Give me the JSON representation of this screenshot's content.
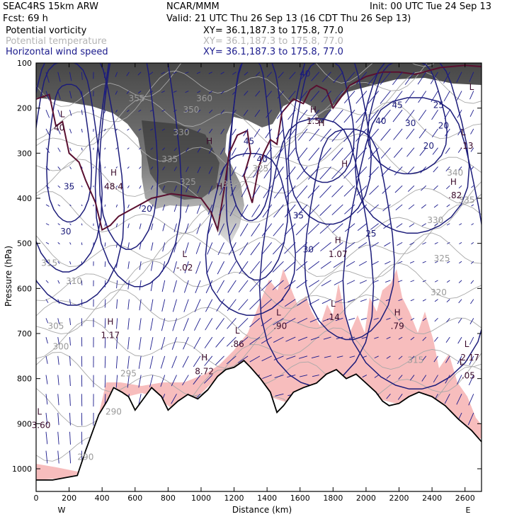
{
  "header": {
    "model": "SEAC4RS 15km ARW",
    "forecast": "Fcst:    69 h",
    "center": "NCAR/MMM",
    "valid": "Valid: 21 UTC Thu 26 Sep 13 (16 CDT Thu 26 Sep 13)",
    "init": "Init: 00 UTC Tue 24 Sep 13",
    "fields": [
      {
        "name": "Potential vorticity",
        "xy": "XY=  36.1,187.3 to 175.8, 77.0",
        "color": "#000000"
      },
      {
        "name": "Potential temperature",
        "xy": "XY=  36.1,187.3 to 175.8, 77.0",
        "color": "#b4b4b4"
      },
      {
        "name": "Horizontal wind speed",
        "xy": "XY=  36.1,187.3 to 175.8, 77.0",
        "color": "#1a1a8c"
      }
    ]
  },
  "colors": {
    "wind_contour": "#1c1c7a",
    "theta_contour": "#a8a8a8",
    "pv_contour": "#5a1030",
    "pv_shading": "#3c3c3c",
    "rh_shading": "#f6b6b6",
    "terrain": "#000000",
    "vector": "#1a1a8c"
  },
  "chart_data": {
    "type": "cross-section",
    "xlabel": "Distance (km)",
    "ylabel": "Pressure (hPa)",
    "xlim": [
      0,
      2700
    ],
    "ylim": [
      1050,
      100
    ],
    "x_ticks": [
      "0",
      "200",
      "400",
      "600",
      "800",
      "1000",
      "1200",
      "1400",
      "1600",
      "1800",
      "2000",
      "2200",
      "2400",
      "2600"
    ],
    "x_tick_values": [
      0,
      200,
      400,
      600,
      800,
      1000,
      1200,
      1400,
      1600,
      1800,
      2000,
      2200,
      2400,
      2600
    ],
    "y_ticks": [
      "100",
      "200",
      "300",
      "400",
      "500",
      "600",
      "700",
      "800",
      "900",
      "1000"
    ],
    "y_tick_values": [
      100,
      200,
      300,
      400,
      500,
      600,
      700,
      800,
      900,
      1000
    ],
    "endpoints": {
      "left": "W",
      "right": "E"
    },
    "terrain_profile": [
      [
        0,
        1025
      ],
      [
        100,
        1025
      ],
      [
        250,
        1015
      ],
      [
        300,
        960
      ],
      [
        380,
        880
      ],
      [
        430,
        850
      ],
      [
        470,
        820
      ],
      [
        520,
        830
      ],
      [
        560,
        840
      ],
      [
        600,
        870
      ],
      [
        640,
        850
      ],
      [
        700,
        820
      ],
      [
        760,
        840
      ],
      [
        800,
        870
      ],
      [
        860,
        850
      ],
      [
        920,
        835
      ],
      [
        980,
        845
      ],
      [
        1040,
        825
      ],
      [
        1100,
        795
      ],
      [
        1150,
        780
      ],
      [
        1200,
        775
      ],
      [
        1260,
        760
      ],
      [
        1300,
        775
      ],
      [
        1360,
        800
      ],
      [
        1420,
        830
      ],
      [
        1460,
        875
      ],
      [
        1500,
        860
      ],
      [
        1560,
        830
      ],
      [
        1620,
        820
      ],
      [
        1700,
        810
      ],
      [
        1760,
        790
      ],
      [
        1820,
        780
      ],
      [
        1880,
        800
      ],
      [
        1940,
        790
      ],
      [
        2000,
        810
      ],
      [
        2060,
        830
      ],
      [
        2100,
        850
      ],
      [
        2140,
        860
      ],
      [
        2200,
        855
      ],
      [
        2260,
        840
      ],
      [
        2320,
        830
      ],
      [
        2400,
        840
      ],
      [
        2480,
        860
      ],
      [
        2560,
        890
      ],
      [
        2640,
        915
      ],
      [
        2700,
        940
      ]
    ],
    "pressure_labels": [
      {
        "text": "L",
        "x": 2640,
        "p": 160
      },
      {
        "text": "H",
        "x": 1730,
        "p": 240
      },
      {
        "text": "H",
        "x": 1110,
        "p": 380
      },
      {
        "text": "L",
        "x": 900,
        "p": 530
      },
      {
        "text": "-.02",
        "x": 900,
        "p": 560
      },
      {
        "text": "H",
        "x": 1830,
        "p": 500
      },
      {
        "text": "1.07",
        "x": 1830,
        "p": 530
      },
      {
        "text": "L",
        "x": 1800,
        "p": 640
      },
      {
        "text": ".14",
        "x": 1800,
        "p": 670
      },
      {
        "text": "H",
        "x": 2190,
        "p": 660
      },
      {
        "text": ".79",
        "x": 2190,
        "p": 690
      },
      {
        "text": "L",
        "x": 1220,
        "p": 700
      },
      {
        "text": ".86",
        "x": 1220,
        "p": 730
      },
      {
        "text": "L",
        "x": 1470,
        "p": 660
      },
      {
        "text": ".90",
        "x": 1480,
        "p": 690
      },
      {
        "text": "H",
        "x": 450,
        "p": 680
      },
      {
        "text": "1.17",
        "x": 450,
        "p": 710
      },
      {
        "text": "H",
        "x": 1020,
        "p": 760
      },
      {
        "text": "8.72",
        "x": 1020,
        "p": 790
      },
      {
        "text": "L",
        "x": 20,
        "p": 880
      },
      {
        "text": "3.60",
        "x": 30,
        "p": 910
      },
      {
        "text": "L",
        "x": 2610,
        "p": 730
      },
      {
        "text": "2.17",
        "x": 2630,
        "p": 760
      },
      {
        "text": "L",
        "x": 2580,
        "p": 770
      },
      {
        "text": ".05",
        "x": 2620,
        "p": 800
      },
      {
        "text": "H",
        "x": 2530,
        "p": 370
      },
      {
        "text": ".82",
        "x": 2540,
        "p": 400
      },
      {
        "text": "L",
        "x": 2590,
        "p": 260
      },
      {
        "text": ".13",
        "x": 2610,
        "p": 290
      },
      {
        "text": "H",
        "x": 470,
        "p": 350
      },
      {
        "text": "48.4",
        "x": 470,
        "p": 380
      },
      {
        "text": "L",
        "x": 160,
        "p": 220
      },
      {
        "text": "40",
        "x": 140,
        "p": 250
      },
      {
        "text": "H",
        "x": 1680,
        "p": 210
      },
      {
        "text": "1.5",
        "x": 1680,
        "p": 235
      },
      {
        "text": "H",
        "x": 1870,
        "p": 330
      },
      {
        "text": "H",
        "x": 1050,
        "p": 280
      }
    ],
    "wind_speed_labels": [
      {
        "text": "35",
        "x": 200,
        "p": 380
      },
      {
        "text": "30",
        "x": 180,
        "p": 480
      },
      {
        "text": "20",
        "x": 670,
        "p": 430
      },
      {
        "text": "45",
        "x": 1290,
        "p": 280
      },
      {
        "text": "40",
        "x": 1370,
        "p": 320
      },
      {
        "text": "35",
        "x": 1590,
        "p": 445
      },
      {
        "text": "30",
        "x": 1650,
        "p": 520
      },
      {
        "text": "25",
        "x": 2030,
        "p": 485
      },
      {
        "text": "20",
        "x": 2380,
        "p": 290
      },
      {
        "text": "25",
        "x": 2440,
        "p": 200
      },
      {
        "text": "30",
        "x": 2270,
        "p": 240
      },
      {
        "text": "20",
        "x": 2470,
        "p": 245
      },
      {
        "text": "40",
        "x": 2090,
        "p": 235
      },
      {
        "text": "45",
        "x": 2190,
        "p": 200
      },
      {
        "text": "40",
        "x": 1630,
        "p": 130
      }
    ],
    "theta_labels": [
      {
        "text": "335",
        "x": 2610,
        "p": 410
      },
      {
        "text": "330",
        "x": 2420,
        "p": 455
      },
      {
        "text": "325",
        "x": 2460,
        "p": 540
      },
      {
        "text": "320",
        "x": 2440,
        "p": 615
      },
      {
        "text": "315",
        "x": 2300,
        "p": 765
      },
      {
        "text": "305",
        "x": 120,
        "p": 690
      },
      {
        "text": "300",
        "x": 150,
        "p": 735
      },
      {
        "text": "295",
        "x": 560,
        "p": 795
      },
      {
        "text": "290",
        "x": 470,
        "p": 880
      },
      {
        "text": "290",
        "x": 300,
        "p": 980
      },
      {
        "text": "310",
        "x": 230,
        "p": 590
      },
      {
        "text": "315",
        "x": 80,
        "p": 550
      },
      {
        "text": "340",
        "x": 2540,
        "p": 350
      },
      {
        "text": "335",
        "x": 810,
        "p": 320
      },
      {
        "text": "325",
        "x": 920,
        "p": 370
      },
      {
        "text": "330",
        "x": 880,
        "p": 260
      },
      {
        "text": "350",
        "x": 940,
        "p": 210
      },
      {
        "text": "360",
        "x": 1020,
        "p": 185
      },
      {
        "text": "355",
        "x": 610,
        "p": 185
      },
      {
        "text": "325",
        "x": 1360,
        "p": 340
      },
      {
        "text": "330",
        "x": 1180,
        "p": 375
      }
    ]
  }
}
